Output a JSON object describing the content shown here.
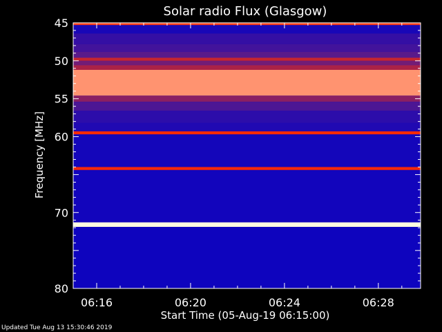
{
  "chart_data": {
    "type": "heatmap",
    "title": "Solar radio Flux (Glasgow)",
    "xlabel": "Start Time (05-Aug-19 06:15:00)",
    "ylabel": "Frequency [MHz]",
    "x_ticks": [
      "06:16",
      "06:20",
      "06:24",
      "06:28"
    ],
    "x_tick_minutes": [
      16,
      20,
      24,
      28
    ],
    "xlim_minutes": [
      15,
      29.8
    ],
    "y_ticks": [
      45,
      50,
      55,
      60,
      70,
      80
    ],
    "ylim": [
      45,
      80
    ],
    "colors": {
      "background": "#000000",
      "low": "#0000c8",
      "mid": "#5a1a8a",
      "high": "#ff2a00",
      "peak": "#fffbe0"
    },
    "bands": [
      {
        "freq": [
          45.0,
          45.3
        ],
        "level": 0.82
      },
      {
        "freq": [
          45.3,
          46.4
        ],
        "level": 0.12
      },
      {
        "freq": [
          46.4,
          47.8
        ],
        "level": 0.26
      },
      {
        "freq": [
          47.8,
          48.8
        ],
        "level": 0.33
      },
      {
        "freq": [
          48.8,
          49.6
        ],
        "level": 0.45
      },
      {
        "freq": [
          49.6,
          50.0
        ],
        "level": 0.68
      },
      {
        "freq": [
          50.0,
          50.6
        ],
        "level": 0.5
      },
      {
        "freq": [
          50.6,
          51.2
        ],
        "level": 0.62
      },
      {
        "freq": [
          51.2,
          54.6
        ],
        "level": 0.9
      },
      {
        "freq": [
          54.6,
          55.4
        ],
        "level": 0.55
      },
      {
        "freq": [
          55.4,
          56.6
        ],
        "level": 0.38
      },
      {
        "freq": [
          56.6,
          58.2
        ],
        "level": 0.22
      },
      {
        "freq": [
          58.2,
          59.3
        ],
        "level": 0.16
      },
      {
        "freq": [
          59.3,
          59.7
        ],
        "level": 0.8
      },
      {
        "freq": [
          59.7,
          64.0
        ],
        "level": 0.1
      },
      {
        "freq": [
          64.0,
          64.4
        ],
        "level": 0.78
      },
      {
        "freq": [
          64.4,
          71.3
        ],
        "level": 0.09
      },
      {
        "freq": [
          71.3,
          71.9
        ],
        "level": 1.0
      },
      {
        "freq": [
          71.9,
          80.0
        ],
        "level": 0.07
      }
    ]
  },
  "footer": "Updated Tue Aug 13 15:30:46 2019"
}
